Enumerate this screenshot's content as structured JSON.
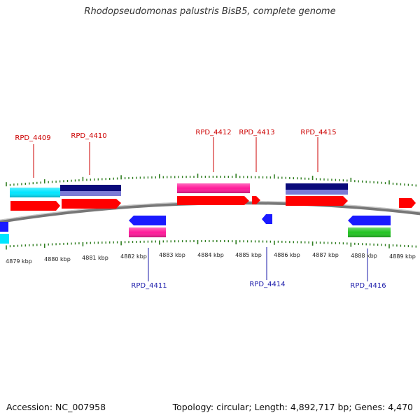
{
  "title": "Rhodopseudomonas palustris BisB5, complete genome",
  "footer": {
    "accession": "Accession: NC_007958",
    "summary": "Topology: circular; Length: 4,892,717 bp; Genes: 4,470"
  },
  "colors": {
    "backbone": "#8a8a8a",
    "tick": "#2e7d1f",
    "label_forward": "#cc0000",
    "label_reverse": "#1a1aaa",
    "red": "#ff0000",
    "blue": "#1a1aff",
    "cyan": "#00e5ff",
    "navy": "#0a0a7a",
    "lavender": "#7b7bd6",
    "pink": "#ff1a9a",
    "green": "#22c322"
  },
  "axis_labels": [
    "4879 kbp",
    "4880 kbp",
    "4881 kbp",
    "4882 kbp",
    "4883 kbp",
    "4884 kbp",
    "4885 kbp",
    "4886 kbp",
    "4887 kbp",
    "4888 kbp",
    "4889 kbp"
  ],
  "gene_labels": {
    "forward": [
      "RPD_4409",
      "RPD_4410",
      "RPD_4412",
      "RPD_4413",
      "RPD_4415"
    ],
    "reverse": [
      "RPD_4411",
      "RPD_4414",
      "RPD_4416"
    ]
  }
}
